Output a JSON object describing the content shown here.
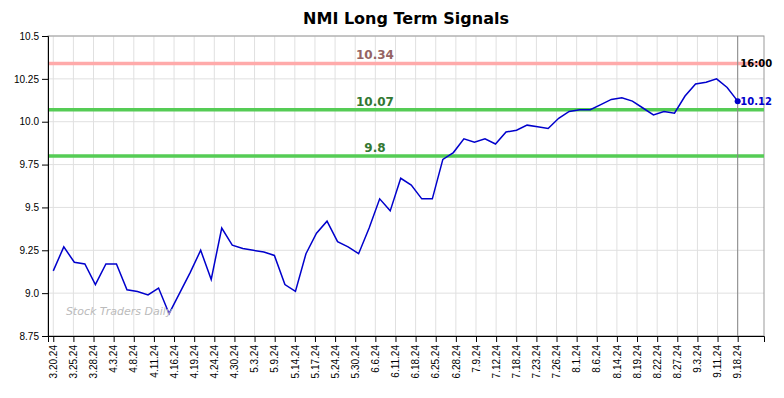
{
  "chart_data": {
    "type": "line",
    "title": "NMI Long Term Signals",
    "watermark": "Stock Traders Daily",
    "color": "#0000cc",
    "grid": true,
    "values": [
      9.13,
      9.27,
      9.18,
      9.17,
      9.05,
      9.17,
      9.17,
      9.02,
      9.01,
      8.99,
      9.03,
      8.88,
      9.0,
      9.12,
      9.25,
      9.08,
      9.38,
      9.28,
      9.26,
      9.25,
      9.24,
      9.22,
      9.05,
      9.01,
      9.23,
      9.35,
      9.42,
      9.3,
      9.27,
      9.23,
      9.38,
      9.55,
      9.48,
      9.67,
      9.63,
      9.55,
      9.55,
      9.78,
      9.82,
      9.9,
      9.88,
      9.9,
      9.87,
      9.94,
      9.95,
      9.98,
      9.97,
      9.96,
      10.02,
      10.06,
      10.07,
      10.07,
      10.1,
      10.13,
      10.14,
      10.12,
      10.08,
      10.04,
      10.06,
      10.05,
      10.15,
      10.22,
      10.23,
      10.25,
      10.2,
      10.12
    ],
    "xlim": [
      -0.5,
      67.5
    ],
    "xticks": [
      {
        "value": 0,
        "label": "3.20.24"
      },
      {
        "value": 1.9118,
        "label": "3.25.24"
      },
      {
        "value": 3.8235,
        "label": "3.28.24"
      },
      {
        "value": 5.7353,
        "label": "4.3.24"
      },
      {
        "value": 7.6471,
        "label": "4.8.24"
      },
      {
        "value": 9.5588,
        "label": "4.11.24"
      },
      {
        "value": 11.4706,
        "label": "4.16.24"
      },
      {
        "value": 13.3824,
        "label": "4.19.24"
      },
      {
        "value": 15.2941,
        "label": "4.24.24"
      },
      {
        "value": 17.2059,
        "label": "4.30.24"
      },
      {
        "value": 19.1176,
        "label": "5.3.24"
      },
      {
        "value": 21.0294,
        "label": "5.9.24"
      },
      {
        "value": 22.9412,
        "label": "5.14.24"
      },
      {
        "value": 24.8529,
        "label": "5.17.24"
      },
      {
        "value": 26.7647,
        "label": "5.24.24"
      },
      {
        "value": 28.6765,
        "label": "5.30.24"
      },
      {
        "value": 30.5882,
        "label": "6.6.24"
      },
      {
        "value": 32.5,
        "label": "6.11.24"
      },
      {
        "value": 34.4118,
        "label": "6.18.24"
      },
      {
        "value": 36.3235,
        "label": "6.25.24"
      },
      {
        "value": 38.2353,
        "label": "6.28.24"
      },
      {
        "value": 40.1471,
        "label": "7.9.24"
      },
      {
        "value": 42.0588,
        "label": "7.12.24"
      },
      {
        "value": 43.9706,
        "label": "7.18.24"
      },
      {
        "value": 45.8824,
        "label": "7.23.24"
      },
      {
        "value": 47.7941,
        "label": "7.26.24"
      },
      {
        "value": 49.7059,
        "label": "8.1.24"
      },
      {
        "value": 51.6176,
        "label": "8.6.24"
      },
      {
        "value": 53.5294,
        "label": "8.14.24"
      },
      {
        "value": 55.4412,
        "label": "8.19.24"
      },
      {
        "value": 57.3529,
        "label": "8.22.24"
      },
      {
        "value": 59.2647,
        "label": "8.27.24"
      },
      {
        "value": 61.1765,
        "label": "9.3.24"
      },
      {
        "value": 63.0882,
        "label": "9.11.24"
      },
      {
        "value": 65,
        "label": "9.18.24"
      }
    ],
    "ylim": [
      8.75,
      10.5
    ],
    "yticks": [
      8.75,
      {
        "value": 9.0,
        "label": "9.0"
      },
      9.25,
      9.5,
      9.75,
      {
        "value": 10.0,
        "label": "10.0"
      },
      10.25,
      10.5
    ],
    "hlines": [
      {
        "value": 10.34,
        "label": "10.34",
        "color": "#ffaaaa"
      },
      {
        "value": 10.07,
        "label": "10.07",
        "color": "#55cc55"
      },
      {
        "value": 9.8,
        "label": "9.8",
        "color": "#55cc55"
      }
    ],
    "end_labels": [
      {
        "text": "16:00",
        "y": 10.34,
        "color": "#000000"
      },
      {
        "text": "10.12",
        "y": 10.12,
        "color": "#0000cc"
      }
    ]
  }
}
